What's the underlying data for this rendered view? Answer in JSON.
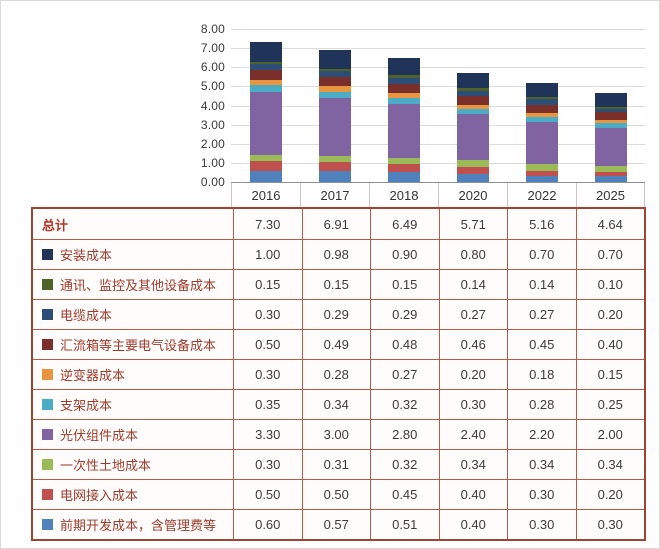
{
  "chart_data": {
    "type": "bar",
    "stacked": true,
    "title": "",
    "xlabel": "",
    "ylabel": "",
    "grid": true,
    "legend_position": "table-left-column",
    "categories": [
      "2016",
      "2017",
      "2018",
      "2020",
      "2022",
      "2025"
    ],
    "ylim": [
      0,
      8
    ],
    "ytick_labels": [
      "8.00",
      "7.00",
      "6.00",
      "5.00",
      "4.00",
      "3.00",
      "2.00",
      "1.00",
      "0.00"
    ],
    "total_row": {
      "label": "总计",
      "values": [
        7.3,
        6.91,
        6.49,
        5.71,
        5.16,
        4.64
      ]
    },
    "series": [
      {
        "name": "安装成本",
        "color": "#20345a",
        "values": [
          1.0,
          0.98,
          0.9,
          0.8,
          0.7,
          0.7
        ]
      },
      {
        "name": "通讯、监控及其他设备成本",
        "color": "#4f6228",
        "values": [
          0.15,
          0.15,
          0.15,
          0.14,
          0.14,
          0.1
        ]
      },
      {
        "name": "电缆成本",
        "color": "#2c4d75",
        "values": [
          0.3,
          0.29,
          0.29,
          0.27,
          0.27,
          0.2
        ]
      },
      {
        "name": "汇流箱等主要电气设备成本",
        "color": "#7b2f2b",
        "values": [
          0.5,
          0.49,
          0.48,
          0.46,
          0.45,
          0.4
        ]
      },
      {
        "name": "逆变器成本",
        "color": "#e8953f",
        "values": [
          0.3,
          0.28,
          0.27,
          0.2,
          0.18,
          0.15
        ]
      },
      {
        "name": "支架成本",
        "color": "#4bacc6",
        "values": [
          0.35,
          0.34,
          0.32,
          0.3,
          0.28,
          0.25
        ]
      },
      {
        "name": "光伏组件成本",
        "color": "#8064a2",
        "values": [
          3.3,
          3.0,
          2.8,
          2.4,
          2.2,
          2.0
        ]
      },
      {
        "name": "一次性土地成本",
        "color": "#9bbb59",
        "values": [
          0.3,
          0.31,
          0.32,
          0.34,
          0.34,
          0.34
        ]
      },
      {
        "name": "电网接入成本",
        "color": "#c0504d",
        "values": [
          0.5,
          0.5,
          0.45,
          0.4,
          0.3,
          0.2
        ]
      },
      {
        "name": "前期开发成本，含管理费等",
        "color": "#4f81bd",
        "values": [
          0.6,
          0.57,
          0.51,
          0.4,
          0.3,
          0.3
        ]
      }
    ],
    "stack_order": "bottom-is-last-series"
  }
}
